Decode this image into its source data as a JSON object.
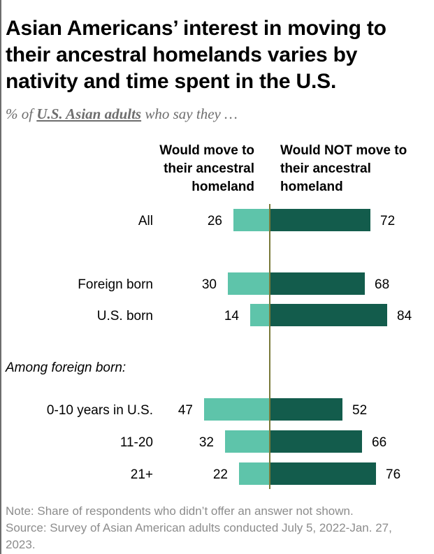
{
  "title": "Asian Americans’ interest in moving to their ancestral homelands varies by nativity and time spent in the U.S.",
  "subtitle": {
    "prefix": "% of",
    "emphasis": "U.S. Asian adults",
    "suffix": "who say they …"
  },
  "column_headers": {
    "left": "Would move to their ancestral homeland",
    "right": "Would NOT move to their ancestral homeland"
  },
  "section_label": "Among foreign born:",
  "note": "Note: Share of respondents who didn’t offer an answer not shown.",
  "source": "Source: Survey of Asian American adults conducted July 5, 2022-Jan. 27, 2023.",
  "colors": {
    "would_move": "#5ec4aa",
    "would_not_move": "#135c4c",
    "axis": "#7a7a3a"
  },
  "chart_data": {
    "type": "bar",
    "orientation": "diverging-horizontal",
    "categories": [
      "All",
      "Foreign born",
      "U.S. born",
      "0-10 years in U.S.",
      "11-20",
      "21+"
    ],
    "series": [
      {
        "name": "Would move to their ancestral homeland",
        "values": [
          26,
          30,
          14,
          47,
          32,
          22
        ]
      },
      {
        "name": "Would NOT move to their ancestral homeland",
        "values": [
          72,
          68,
          84,
          52,
          66,
          76
        ]
      }
    ]
  }
}
